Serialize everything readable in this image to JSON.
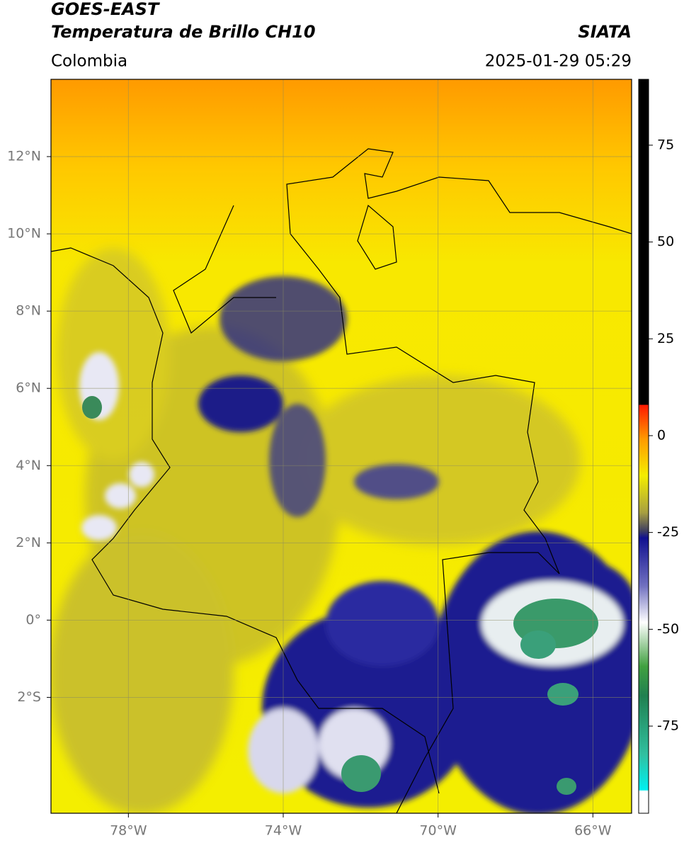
{
  "header": {
    "title1": "GOES-EAST",
    "title2": "Temperatura de Brillo CH10",
    "region": "Colombia",
    "source": "SIATA",
    "datetime": "2025-01-29 05:29"
  },
  "map": {
    "lonlim": [
      -80,
      -65
    ],
    "latlim": [
      -5,
      14
    ],
    "lon_ticks": [
      {
        "value": -78,
        "label": "78°W"
      },
      {
        "value": -74,
        "label": "74°W"
      },
      {
        "value": -70,
        "label": "70°W"
      },
      {
        "value": -66,
        "label": "66°W"
      }
    ],
    "lat_ticks": [
      {
        "value": 12,
        "label": "12°N"
      },
      {
        "value": 10,
        "label": "10°N"
      },
      {
        "value": 8,
        "label": "8°N"
      },
      {
        "value": 6,
        "label": "6°N"
      },
      {
        "value": 4,
        "label": "4°N"
      },
      {
        "value": 2,
        "label": "2°N"
      },
      {
        "value": 0,
        "label": "0°"
      },
      {
        "value": -2,
        "label": "2°S"
      }
    ]
  },
  "colorbar": {
    "lim": [
      -97.5,
      92
    ],
    "ticks": [
      75,
      50,
      25,
      0,
      -25,
      -50,
      -75
    ]
  }
}
